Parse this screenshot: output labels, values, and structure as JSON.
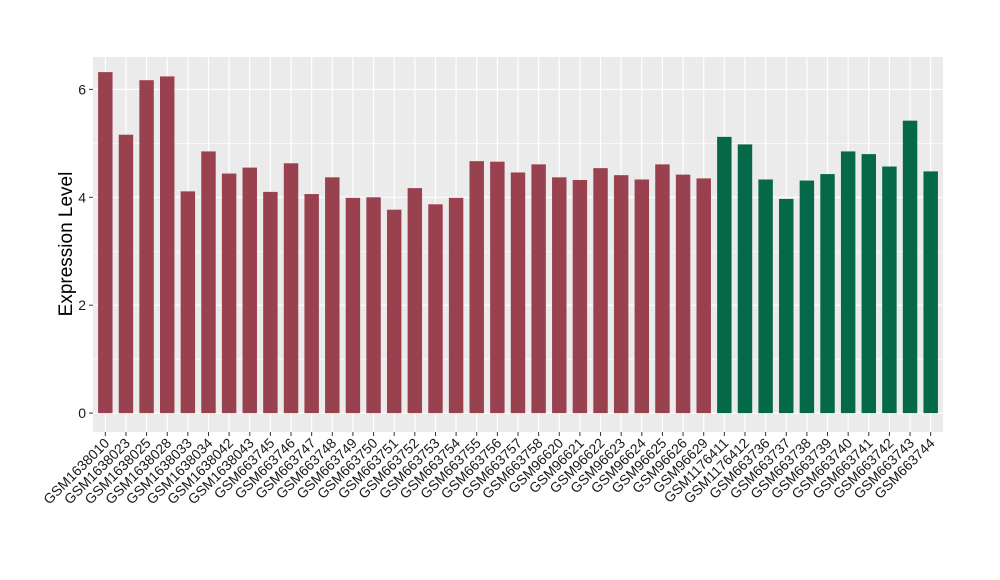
{
  "chart_data": {
    "type": "bar",
    "title": "",
    "xlabel": "",
    "ylabel": "Expression Level",
    "ylim": [
      -0.35,
      6.6
    ],
    "yticks": [
      0,
      2,
      4,
      6
    ],
    "grid": true,
    "legend": "none",
    "colors": {
      "group1": "#9a4150",
      "group2": "#056848",
      "panel": "#ebebeb",
      "grid": "#ffffff"
    },
    "categories": [
      "GSM1638010",
      "GSM1638023",
      "GSM1638025",
      "GSM1638028",
      "GSM1638033",
      "GSM1638034",
      "GSM1638042",
      "GSM1638043",
      "GSM663745",
      "GSM663746",
      "GSM663747",
      "GSM663748",
      "GSM663749",
      "GSM663750",
      "GSM663751",
      "GSM663752",
      "GSM663753",
      "GSM663754",
      "GSM663755",
      "GSM663756",
      "GSM663757",
      "GSM663758",
      "GSM96620",
      "GSM96621",
      "GSM96622",
      "GSM96623",
      "GSM96624",
      "GSM96625",
      "GSM96626",
      "GSM96629",
      "GSM1176411",
      "GSM1176412",
      "GSM663736",
      "GSM663737",
      "GSM663738",
      "GSM663739",
      "GSM663740",
      "GSM663741",
      "GSM663742",
      "GSM663743",
      "GSM663744"
    ],
    "values": [
      6.32,
      5.16,
      6.17,
      6.24,
      4.11,
      4.85,
      4.44,
      4.55,
      4.1,
      4.63,
      4.06,
      4.37,
      3.99,
      4.0,
      3.77,
      4.17,
      3.87,
      3.99,
      4.67,
      4.66,
      4.46,
      4.61,
      4.37,
      4.32,
      4.54,
      4.41,
      4.33,
      4.61,
      4.42,
      4.35,
      5.12,
      4.98,
      4.33,
      3.97,
      4.31,
      4.43,
      4.85,
      4.8,
      4.57,
      5.42,
      4.48
    ],
    "groups": [
      1,
      1,
      1,
      1,
      1,
      1,
      1,
      1,
      1,
      1,
      1,
      1,
      1,
      1,
      1,
      1,
      1,
      1,
      1,
      1,
      1,
      1,
      1,
      1,
      1,
      1,
      1,
      1,
      1,
      1,
      2,
      2,
      2,
      2,
      2,
      2,
      2,
      2,
      2,
      2,
      2
    ]
  }
}
